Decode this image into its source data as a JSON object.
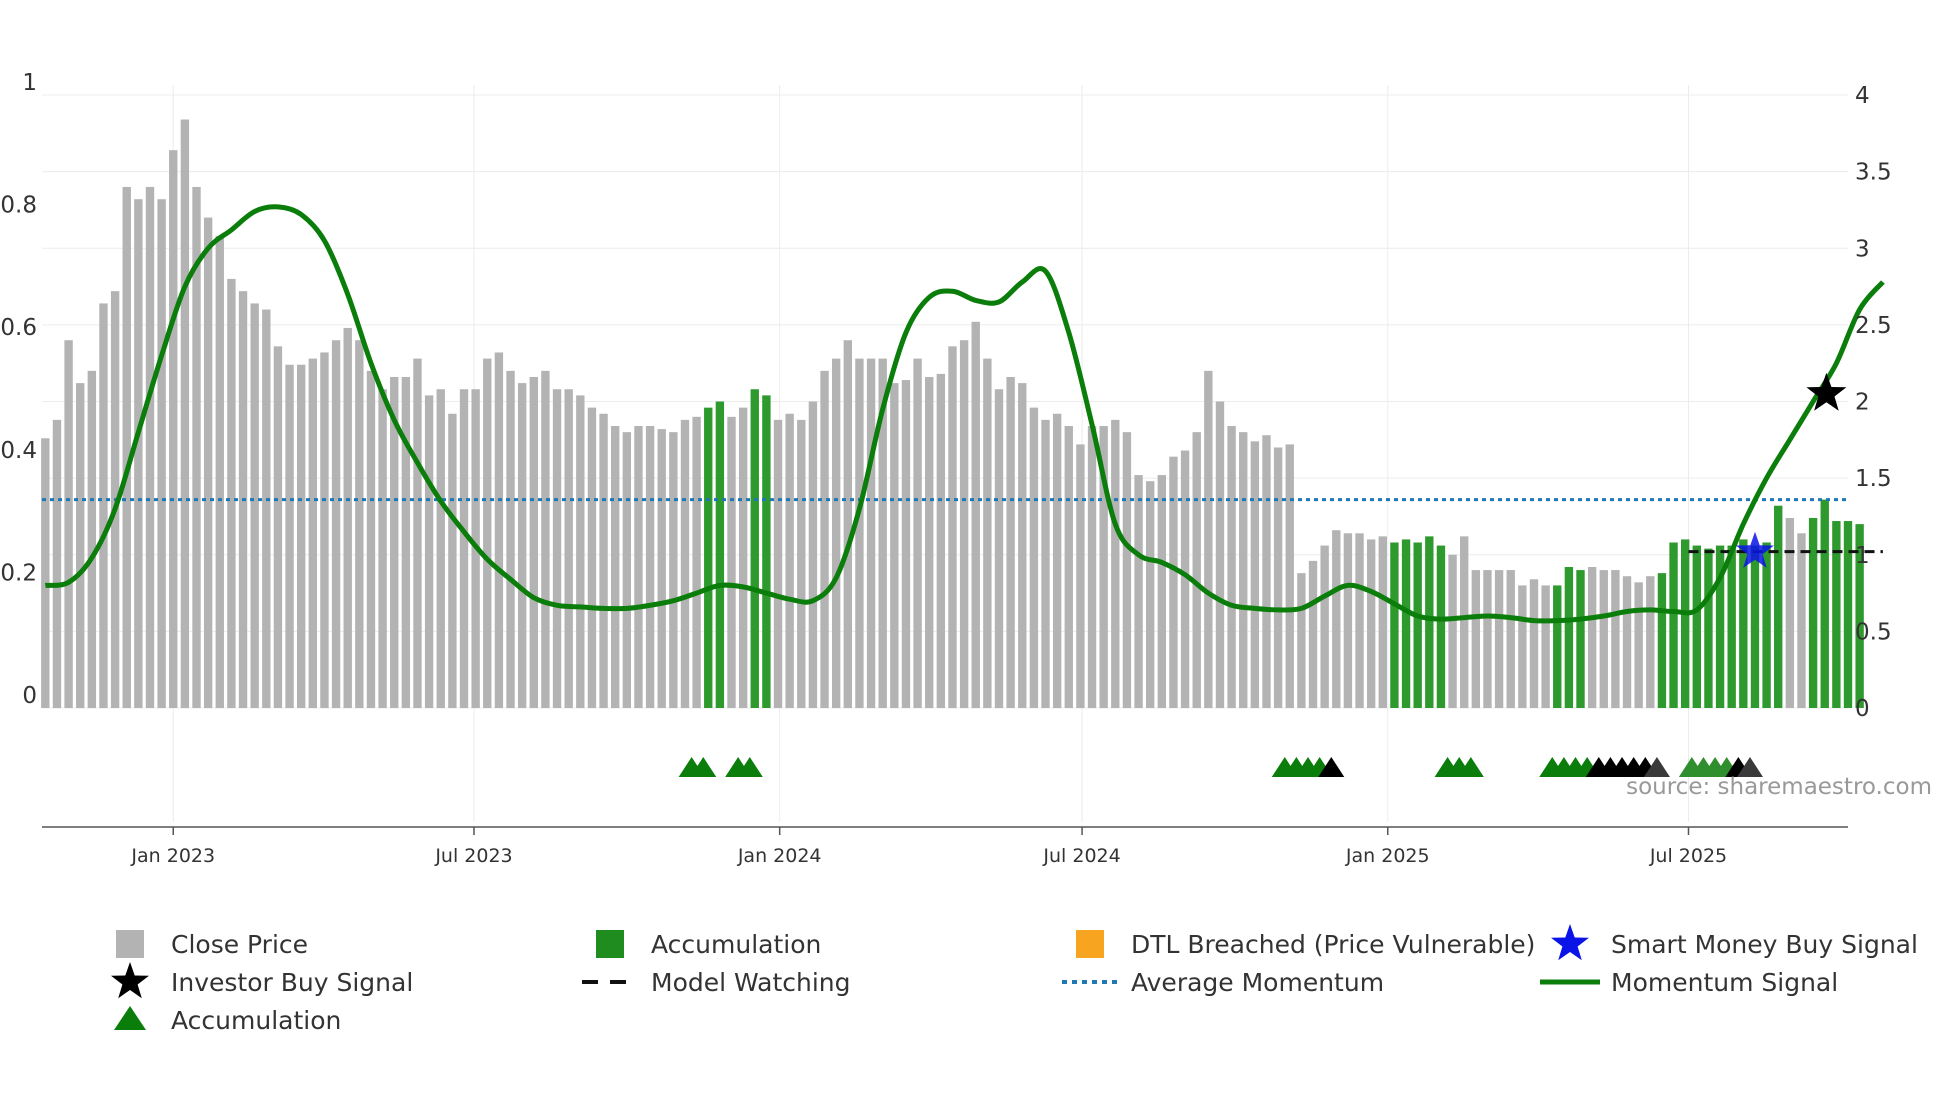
{
  "chart_data": {
    "type": "bar",
    "source_label": "source: sharemaestro.com",
    "left_axis": {
      "ylim": [
        0,
        1
      ],
      "ticks": [
        "0",
        "0.2",
        "0.4",
        "0.6",
        "0.8",
        "1"
      ],
      "tick_values": [
        0,
        0.2,
        0.4,
        0.6,
        0.8,
        1.0
      ]
    },
    "right_axis": {
      "ylim": [
        0,
        4
      ],
      "ticks": [
        "0",
        "0.5",
        "1",
        "1.5",
        "2",
        "2.5",
        "3",
        "3.5",
        "4"
      ],
      "tick_values": [
        0,
        0.5,
        1,
        1.5,
        2,
        2.5,
        3,
        3.5,
        4
      ]
    },
    "x_axis": {
      "start": "2022-10-14",
      "end": "2025-10-05",
      "ticks": [
        {
          "label": "Jan 2023",
          "date": "2023-01-01"
        },
        {
          "label": "Jul 2023",
          "date": "2023-07-01"
        },
        {
          "label": "Jan 2024",
          "date": "2024-01-01"
        },
        {
          "label": "Jul 2024",
          "date": "2024-07-01"
        },
        {
          "label": "Jan 2025",
          "date": "2025-01-01"
        },
        {
          "label": "Jul 2025",
          "date": "2025-07-01"
        }
      ]
    },
    "weeks": {
      "start": "2022-10-16",
      "interval_days": 7
    },
    "series": [
      {
        "name": "Close Price",
        "axis": "left",
        "color": "#b3b3b3",
        "values": [
          0.44,
          0.47,
          0.6,
          0.53,
          0.55,
          0.66,
          0.68,
          0.85,
          0.83,
          0.85,
          0.83,
          0.91,
          0.96,
          0.85,
          0.8,
          0.77,
          0.7,
          0.68,
          0.66,
          0.65,
          0.59,
          0.56,
          0.56,
          0.57,
          0.58,
          0.6,
          0.62,
          0.6,
          0.55,
          0.52,
          0.54,
          0.54,
          0.57,
          0.51,
          0.52,
          0.48,
          0.52,
          0.52,
          0.57,
          0.58,
          0.55,
          0.53,
          0.54,
          0.55,
          0.52,
          0.52,
          0.51,
          0.49,
          0.48,
          0.46,
          0.45,
          0.46,
          0.46,
          0.455,
          0.45,
          0.47,
          0.475,
          0.49,
          0.5,
          0.475,
          0.49,
          0.52,
          0.51,
          0.47,
          0.48,
          0.47,
          0.5,
          0.55,
          0.57,
          0.6,
          0.57,
          0.57,
          0.57,
          0.53,
          0.535,
          0.57,
          0.54,
          0.545,
          0.59,
          0.6,
          0.63,
          0.57,
          0.52,
          0.54,
          0.53,
          0.49,
          0.47,
          0.48,
          0.46,
          0.43,
          0.46,
          0.46,
          0.47,
          0.45,
          0.38,
          0.37,
          0.38,
          0.41,
          0.42,
          0.45,
          0.55,
          0.5,
          0.46,
          0.45,
          0.435,
          0.445,
          0.425,
          0.43,
          0.22,
          0.24,
          0.265,
          0.29,
          0.285,
          0.285,
          0.275,
          0.28,
          0.27,
          0.275,
          0.27,
          0.28,
          0.265,
          0.25,
          0.28,
          0.225,
          0.225,
          0.225,
          0.225,
          0.2,
          0.21,
          0.2,
          0.2,
          0.23,
          0.225,
          0.23,
          0.225,
          0.225,
          0.215,
          0.205,
          0.215,
          0.22,
          0.27,
          0.275,
          0.265,
          0.26,
          0.265,
          0.265,
          0.275,
          0.265,
          0.27,
          0.33,
          0.31,
          0.285,
          0.31,
          0.34,
          0.305,
          0.305,
          0.3
        ]
      },
      {
        "name": "Momentum Signal",
        "axis": "right",
        "color": "#0a7d0a",
        "knots": [
          [
            "2022-10-16",
            0.8
          ],
          [
            "2022-10-30",
            0.82
          ],
          [
            "2022-11-13",
            0.98
          ],
          [
            "2022-11-27",
            1.3
          ],
          [
            "2022-12-11",
            1.8
          ],
          [
            "2022-12-25",
            2.3
          ],
          [
            "2023-01-08",
            2.75
          ],
          [
            "2023-01-22",
            3.0
          ],
          [
            "2023-02-05",
            3.12
          ],
          [
            "2023-02-19",
            3.24
          ],
          [
            "2023-03-05",
            3.27
          ],
          [
            "2023-03-19",
            3.22
          ],
          [
            "2023-04-02",
            3.05
          ],
          [
            "2023-04-16",
            2.7
          ],
          [
            "2023-04-30",
            2.25
          ],
          [
            "2023-05-14",
            1.88
          ],
          [
            "2023-05-28",
            1.6
          ],
          [
            "2023-06-11",
            1.35
          ],
          [
            "2023-06-25",
            1.15
          ],
          [
            "2023-07-09",
            0.97
          ],
          [
            "2023-07-23",
            0.84
          ],
          [
            "2023-08-06",
            0.72
          ],
          [
            "2023-08-20",
            0.67
          ],
          [
            "2023-09-03",
            0.66
          ],
          [
            "2023-09-17",
            0.65
          ],
          [
            "2023-10-01",
            0.65
          ],
          [
            "2023-10-15",
            0.67
          ],
          [
            "2023-10-29",
            0.7
          ],
          [
            "2023-11-12",
            0.75
          ],
          [
            "2023-11-26",
            0.8
          ],
          [
            "2023-12-10",
            0.79
          ],
          [
            "2023-12-24",
            0.75
          ],
          [
            "2024-01-07",
            0.71
          ],
          [
            "2024-01-21",
            0.7
          ],
          [
            "2024-02-04",
            0.85
          ],
          [
            "2024-02-18",
            1.3
          ],
          [
            "2024-03-03",
            1.95
          ],
          [
            "2024-03-17",
            2.45
          ],
          [
            "2024-03-31",
            2.68
          ],
          [
            "2024-04-14",
            2.72
          ],
          [
            "2024-04-28",
            2.66
          ],
          [
            "2024-05-12",
            2.65
          ],
          [
            "2024-05-26",
            2.78
          ],
          [
            "2024-06-09",
            2.85
          ],
          [
            "2024-06-23",
            2.45
          ],
          [
            "2024-07-07",
            1.85
          ],
          [
            "2024-07-21",
            1.2
          ],
          [
            "2024-08-04",
            1.0
          ],
          [
            "2024-08-18",
            0.95
          ],
          [
            "2024-09-01",
            0.87
          ],
          [
            "2024-09-15",
            0.75
          ],
          [
            "2024-09-29",
            0.67
          ],
          [
            "2024-10-13",
            0.65
          ],
          [
            "2024-10-27",
            0.64
          ],
          [
            "2024-11-10",
            0.65
          ],
          [
            "2024-11-24",
            0.73
          ],
          [
            "2024-12-08",
            0.8
          ],
          [
            "2024-12-22",
            0.76
          ],
          [
            "2025-01-05",
            0.68
          ],
          [
            "2025-01-19",
            0.6
          ],
          [
            "2025-02-02",
            0.58
          ],
          [
            "2025-02-16",
            0.59
          ],
          [
            "2025-03-02",
            0.6
          ],
          [
            "2025-03-16",
            0.59
          ],
          [
            "2025-03-30",
            0.57
          ],
          [
            "2025-04-13",
            0.57
          ],
          [
            "2025-04-27",
            0.58
          ],
          [
            "2025-05-11",
            0.6
          ],
          [
            "2025-05-25",
            0.63
          ],
          [
            "2025-06-08",
            0.64
          ],
          [
            "2025-06-22",
            0.63
          ],
          [
            "2025-07-06",
            0.64
          ],
          [
            "2025-07-20",
            0.85
          ],
          [
            "2025-08-03",
            1.2
          ],
          [
            "2025-08-17",
            1.5
          ],
          [
            "2025-08-31",
            1.75
          ],
          [
            "2025-09-14",
            2.0
          ],
          [
            "2025-09-28",
            2.25
          ],
          [
            "2025-10-12",
            2.6
          ],
          [
            "2025-10-26",
            2.78
          ]
        ]
      },
      {
        "name": "Average Momentum",
        "axis": "right",
        "color": "#1f77b4",
        "value": 1.36
      },
      {
        "name": "Model Watching",
        "axis": "right",
        "color": "#111111",
        "value": 1.02,
        "start": "2025-07-01",
        "end": "2025-10-26"
      }
    ],
    "accumulation_weeks": [
      [
        57,
        58
      ],
      [
        61,
        62
      ],
      [
        116,
        117,
        118,
        119,
        120
      ],
      [
        130,
        131,
        132
      ],
      [
        139,
        140,
        141,
        142,
        143,
        144,
        145,
        146,
        147,
        148,
        149
      ],
      [
        152,
        153,
        154,
        155,
        156
      ]
    ],
    "accumulation_triangles": [
      {
        "date": "2023-11-09",
        "color": "#0a7d0a"
      },
      {
        "date": "2023-11-16",
        "color": "#0a7d0a"
      },
      {
        "date": "2023-12-07",
        "color": "#0a7d0a"
      },
      {
        "date": "2023-12-14",
        "color": "#0a7d0a"
      },
      {
        "date": "2024-10-31",
        "color": "#0a7d0a"
      },
      {
        "date": "2024-11-07",
        "color": "#0a7d0a"
      },
      {
        "date": "2024-11-14",
        "color": "#0a7d0a"
      },
      {
        "date": "2024-11-21",
        "color": "#0a7d0a"
      },
      {
        "date": "2024-11-28",
        "color": "#000000"
      },
      {
        "date": "2025-02-06",
        "color": "#0a7d0a"
      },
      {
        "date": "2025-02-13",
        "color": "#0a7d0a"
      },
      {
        "date": "2025-02-20",
        "color": "#0a7d0a"
      },
      {
        "date": "2025-04-10",
        "color": "#0a7d0a"
      },
      {
        "date": "2025-04-17",
        "color": "#0a7d0a"
      },
      {
        "date": "2025-04-24",
        "color": "#0a7d0a"
      },
      {
        "date": "2025-05-01",
        "color": "#0a7d0a"
      },
      {
        "date": "2025-05-08",
        "color": "#000000"
      },
      {
        "date": "2025-05-15",
        "color": "#000000"
      },
      {
        "date": "2025-05-22",
        "color": "#000000"
      },
      {
        "date": "2025-05-29",
        "color": "#000000"
      },
      {
        "date": "2025-06-05",
        "color": "#000000"
      },
      {
        "date": "2025-06-12",
        "color": "#3a3a3a"
      },
      {
        "date": "2025-07-03",
        "color": "#2f8f2f"
      },
      {
        "date": "2025-07-10",
        "color": "#2f8f2f"
      },
      {
        "date": "2025-07-17",
        "color": "#2f8f2f"
      },
      {
        "date": "2025-07-24",
        "color": "#2f8f2f"
      },
      {
        "date": "2025-07-31",
        "color": "#000000"
      },
      {
        "date": "2025-08-07",
        "color": "#3a3a3a"
      }
    ],
    "smart_money_buy": [
      {
        "date": "2025-08-10",
        "value": 1.02
      }
    ],
    "investor_buy": [
      {
        "date": "2025-09-22",
        "value": 2.05
      }
    ],
    "legend": [
      {
        "label": "Close Price",
        "kind": "square",
        "color": "#b3b3b3"
      },
      {
        "label": "Accumulation",
        "kind": "square",
        "color": "#1e8c1e"
      },
      {
        "label": "DTL Breached (Price Vulnerable)",
        "kind": "square",
        "color": "#f7a520"
      },
      {
        "label": "Smart Money Buy Signal",
        "kind": "star",
        "color": "#0a14e6"
      },
      {
        "label": "Investor Buy Signal",
        "kind": "star",
        "color": "#000000"
      },
      {
        "label": "Model Watching",
        "kind": "dash",
        "color": "#111111"
      },
      {
        "label": "Average Momentum",
        "kind": "dot",
        "color": "#1f77b4"
      },
      {
        "label": "Momentum Signal",
        "kind": "line",
        "color": "#0a7d0a"
      },
      {
        "label": "Accumulation",
        "kind": "triangle",
        "color": "#0a7d0a"
      }
    ]
  }
}
